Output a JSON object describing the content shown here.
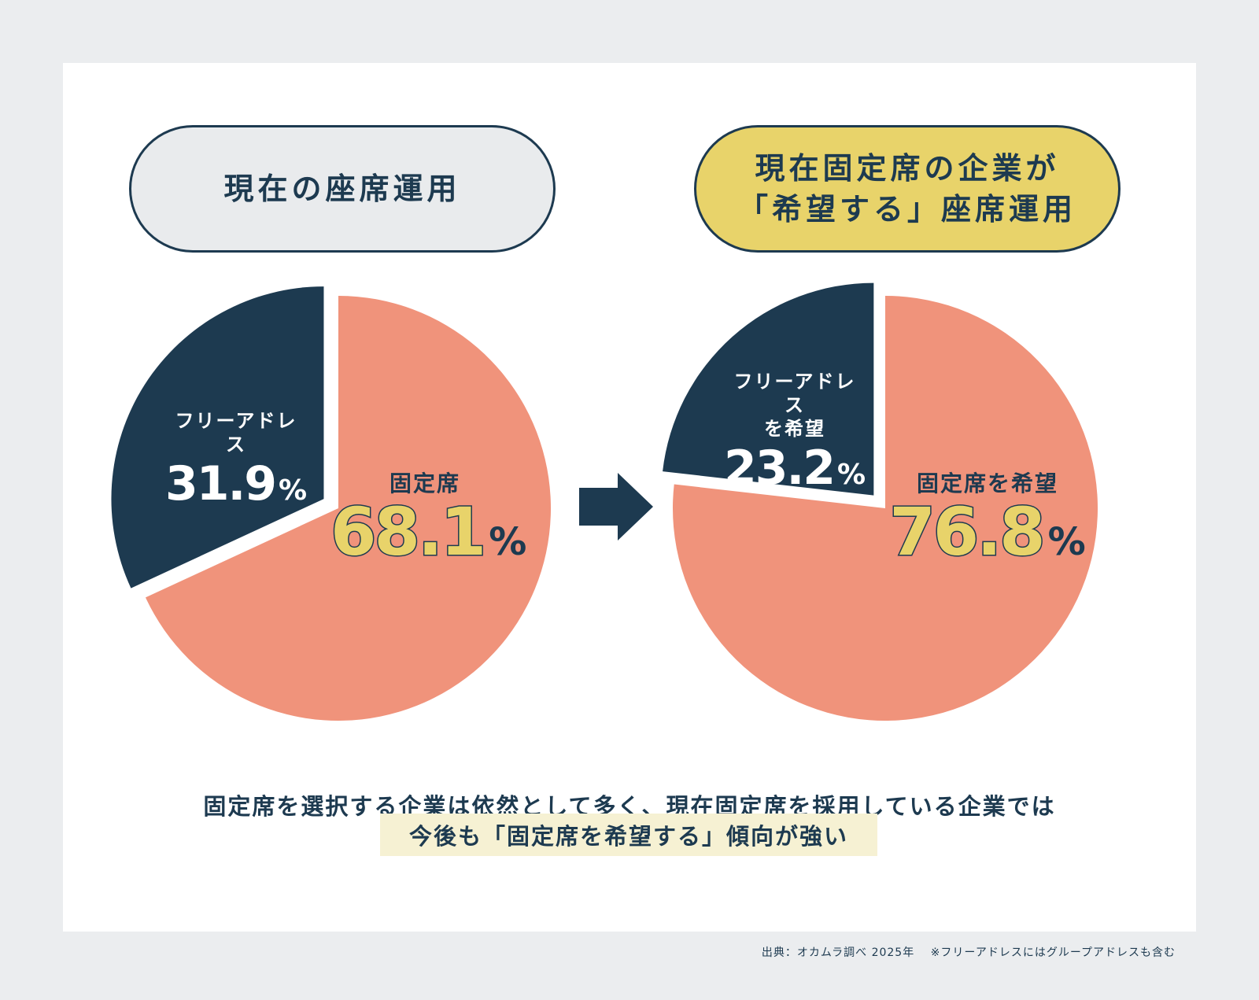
{
  "header": {
    "left_title": "現在の座席運用",
    "right_title_line1": "現在固定席の企業が",
    "right_title_line2": "「希望する」座席運用"
  },
  "chart_data": [
    {
      "type": "pie",
      "title": "現在の座席運用",
      "slices": [
        {
          "label": "固定席",
          "value": 68.1,
          "color": "#f0937b"
        },
        {
          "label": "フリーアドレス",
          "value": 31.9,
          "color": "#1d3a50"
        }
      ]
    },
    {
      "type": "pie",
      "title": "現在固定席の企業が「希望する」座席運用",
      "slices": [
        {
          "label": "固定席を希望",
          "value": 76.8,
          "color": "#f0937b"
        },
        {
          "label": "フリーアドレスを希望",
          "value": 23.2,
          "color": "#1d3a50"
        }
      ]
    }
  ],
  "labels": {
    "left_minor_name": "フリーアドレス",
    "left_minor_value": "31.9",
    "left_major_name": "固定席",
    "left_major_value": "68.1",
    "right_minor_name_line1": "フリーアドレス",
    "right_minor_name_line2": "を希望",
    "right_minor_value": "23.2",
    "right_major_name": "固定席を希望",
    "right_major_value": "76.8",
    "percent": "%"
  },
  "arrow_icon": "right-arrow-icon",
  "caption": {
    "line1": "固定席を選択する企業は依然として多く、現在固定席を採用している企業では",
    "line2": "今後も「固定席を希望する」傾向が強い"
  },
  "footnote": "出典：オカムラ調べ 2025年　 ※フリーアドレスにはグループアドレスも含む",
  "colors": {
    "navy": "#1d3a50",
    "salmon": "#f0937b",
    "yellow": "#e8d36a",
    "highlight": "#f6f1d3",
    "background": "#ebedef"
  }
}
